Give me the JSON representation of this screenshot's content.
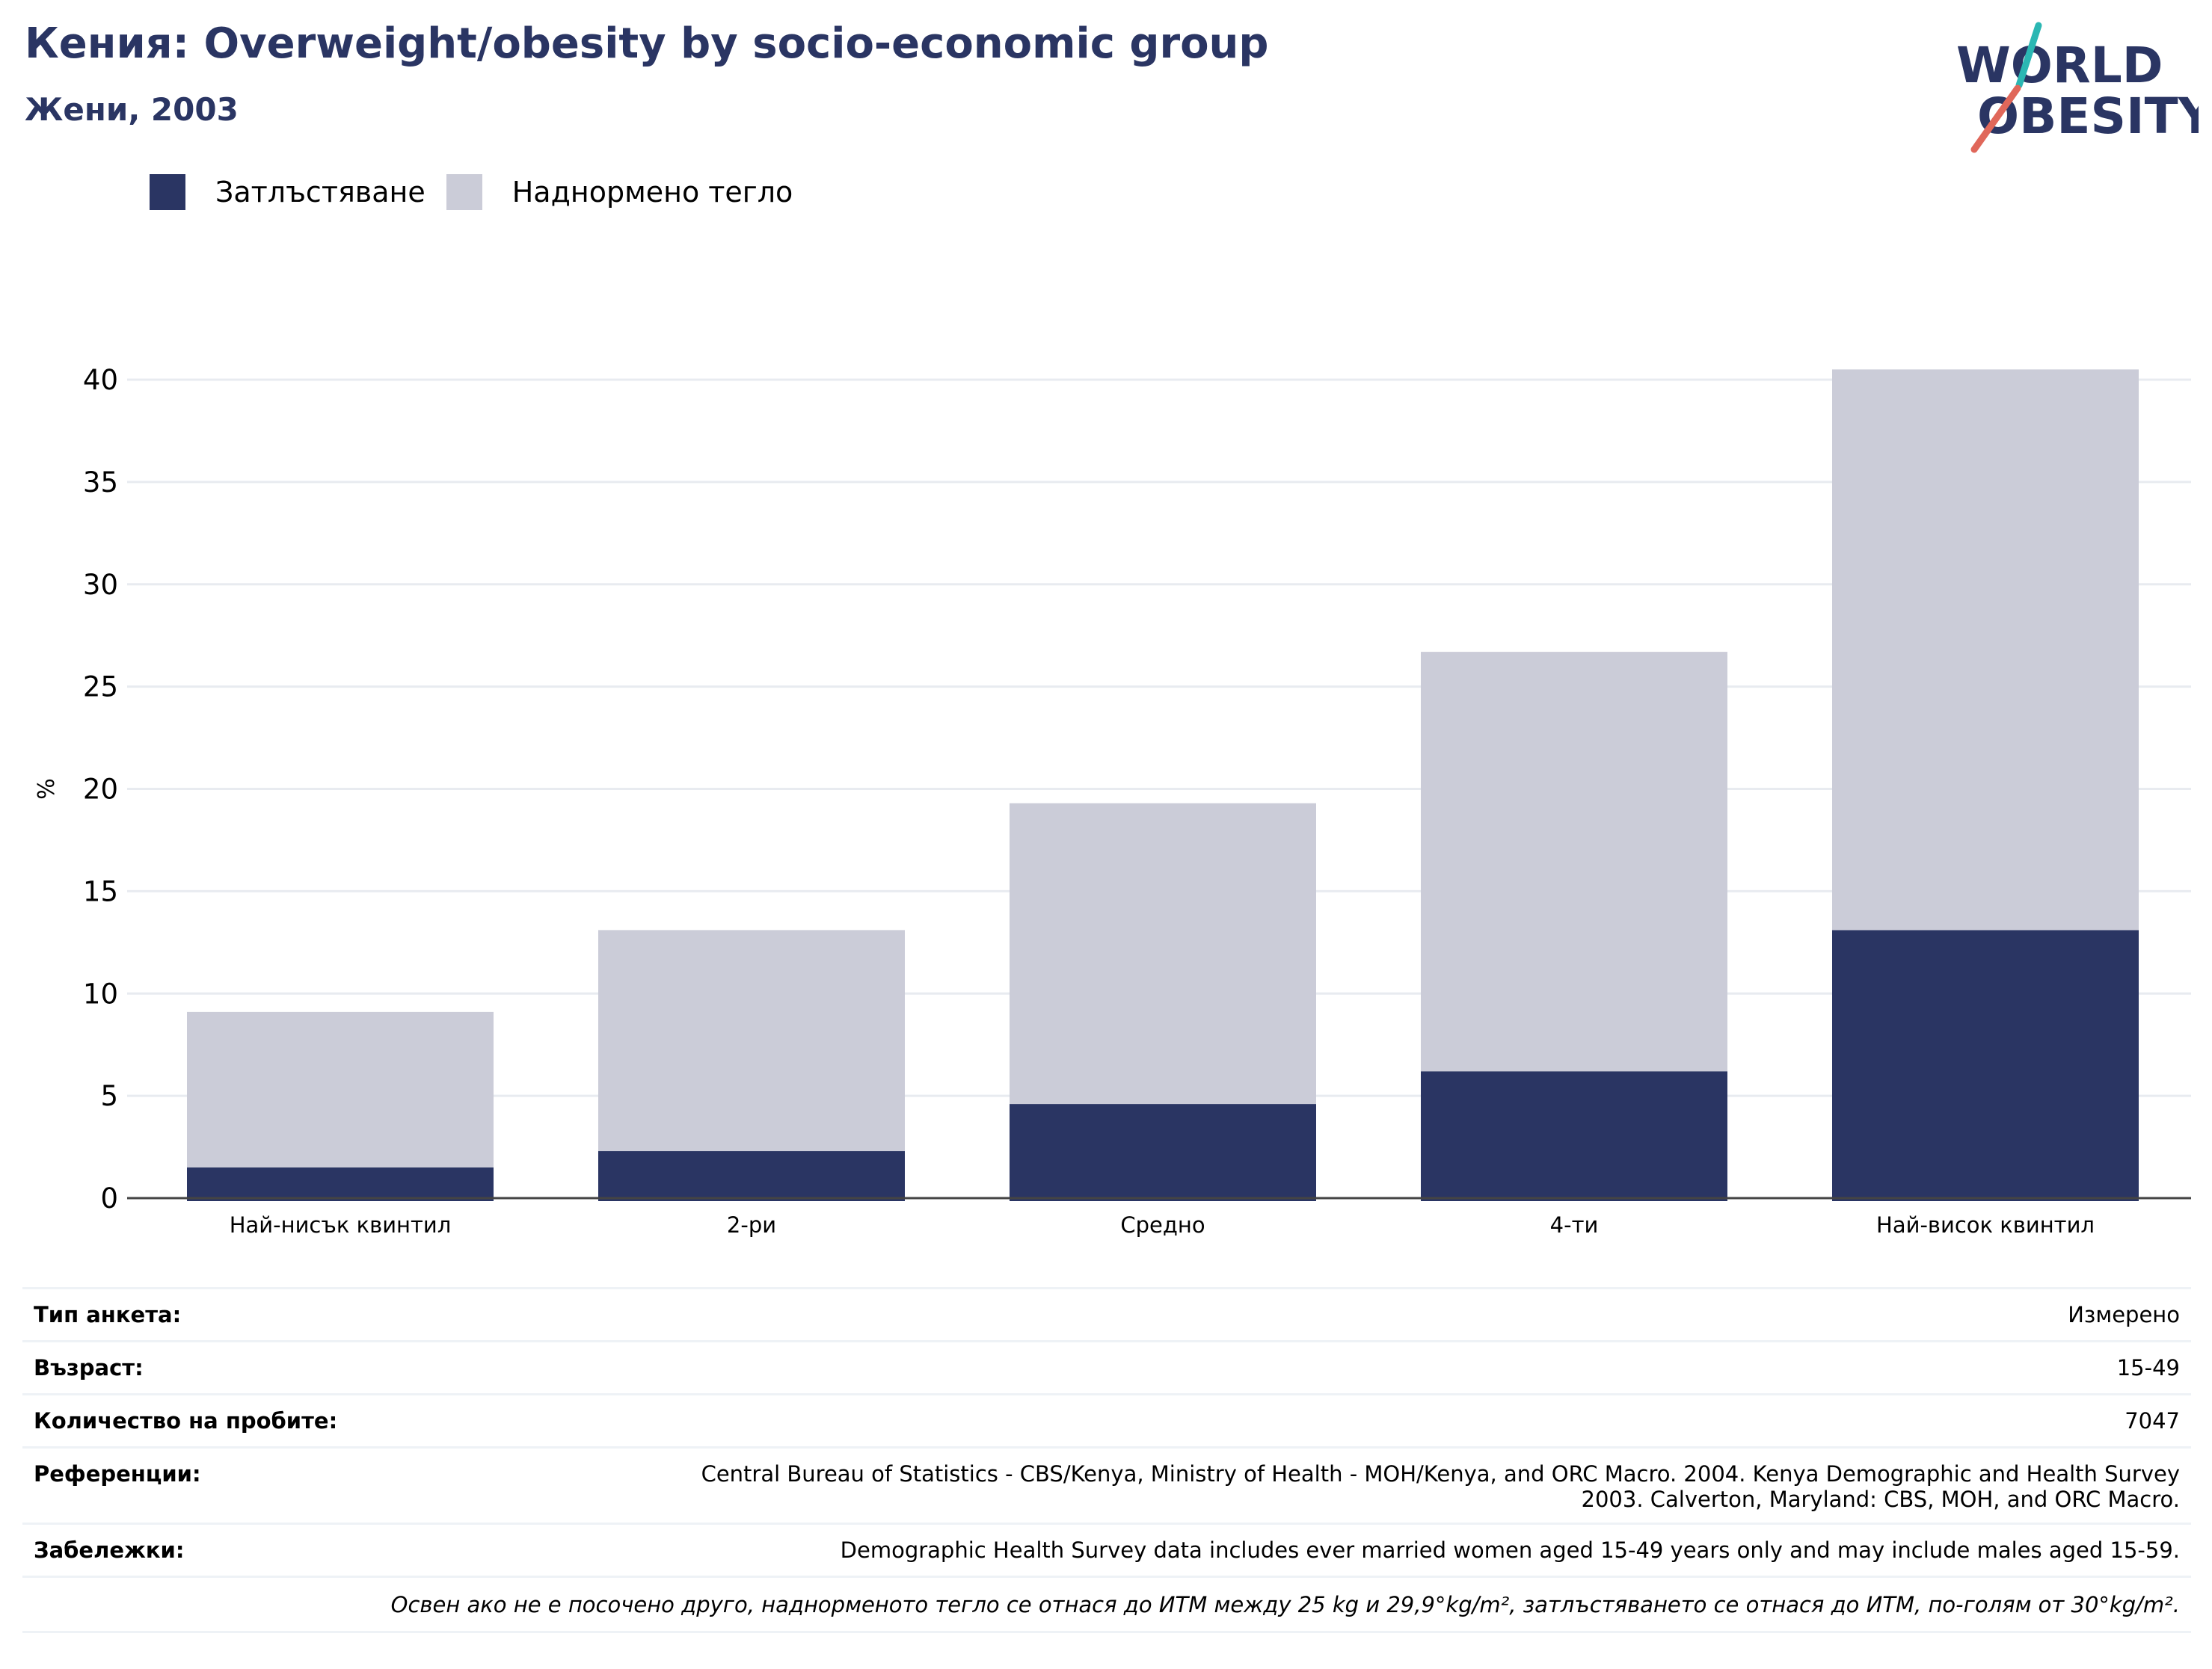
{
  "header": {
    "title": "Кения: Overweight/obesity by socio-economic group",
    "subtitle": "Жени, 2003"
  },
  "logo": {
    "line1": "WORLD",
    "line2": "OBESITY"
  },
  "legend": [
    {
      "label": "Затлъстяване",
      "color": "#2a3563"
    },
    {
      "label": "Наднормено тегло",
      "color": "#cbccd8"
    }
  ],
  "chart_data": {
    "type": "bar",
    "stacked": true,
    "categories": [
      "Най-нисък квинтил",
      "2-ри",
      "Средно",
      "4-ти",
      "Най-висок квинтил"
    ],
    "series": [
      {
        "name": "Затлъстяване",
        "color": "#2a3563",
        "values": [
          1.5,
          2.3,
          4.6,
          6.2,
          13.1
        ]
      },
      {
        "name": "Наднормено тегло",
        "color": "#cbccd8",
        "values": [
          7.6,
          10.8,
          14.7,
          20.5,
          27.4
        ]
      }
    ],
    "ylabel": "%",
    "ylim": [
      0,
      40
    ],
    "yticks": [
      0,
      5,
      10,
      15,
      20,
      25,
      30,
      35,
      40
    ],
    "grid": true,
    "legend_position": "top-left"
  },
  "info": {
    "survey_type": {
      "label": "Тип анкета:",
      "value": "Измерено"
    },
    "age": {
      "label": "Възраст:",
      "value": "15-49"
    },
    "sample_size": {
      "label": "Количество на пробите:",
      "value": "7047"
    },
    "references": {
      "label": "Референции:",
      "value_line1": "Central Bureau of Statistics - CBS/Kenya, Ministry of Health - MOH/Kenya, and ORC Macro. 2004. Kenya Demographic and Health Survey",
      "value_line2": "2003. Calverton, Maryland: CBS, MOH, and ORC Macro."
    },
    "notes": {
      "label": "Забележки:",
      "value": "Demographic Health Survey data includes ever married women aged 15-49 years only and may include males aged 15-59."
    },
    "footnote": "Освен ако не е посочено друго, наднорменото тегло се отнася до ИТМ между 25 kg и 29,9°kg/m², затлъстяването се отнася до ИТМ, по-голям от 30°kg/m²."
  }
}
